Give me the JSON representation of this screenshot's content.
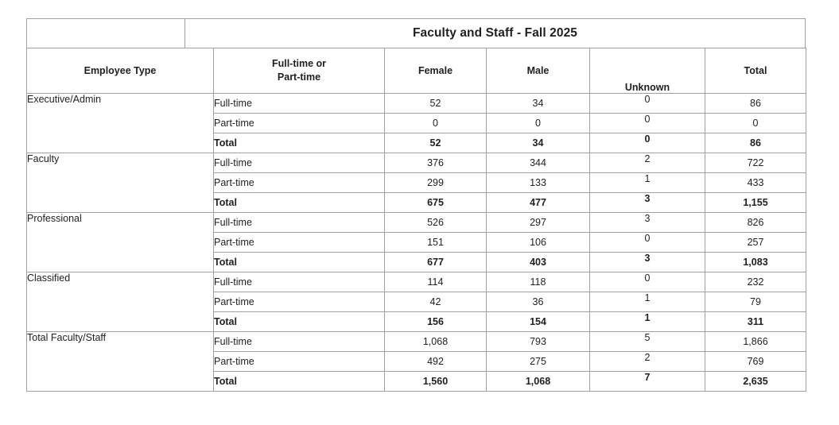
{
  "title": "Faculty and Staff - Fall 2025",
  "columns": {
    "employee_type": "Employee Type",
    "ft_pt": "Full-time or\nPart-time",
    "female": "Female",
    "male": "Male",
    "unknown": "Unknown",
    "total": "Total"
  },
  "groups": [
    {
      "employee_type": "Executive/Admin",
      "rows": [
        {
          "label": "Full-time",
          "female": "52",
          "male": "34",
          "unknown": "0",
          "total": "86",
          "bold": false
        },
        {
          "label": "Part-time",
          "female": "0",
          "male": "0",
          "unknown": "0",
          "total": "0",
          "bold": false
        },
        {
          "label": "Total",
          "female": "52",
          "male": "34",
          "unknown": "0",
          "total": "86",
          "bold": true
        }
      ]
    },
    {
      "employee_type": "Faculty",
      "rows": [
        {
          "label": "Full-time",
          "female": "376",
          "male": "344",
          "unknown": "2",
          "total": "722",
          "bold": false
        },
        {
          "label": "Part-time",
          "female": "299",
          "male": "133",
          "unknown": "1",
          "total": "433",
          "bold": false
        },
        {
          "label": "Total",
          "female": "675",
          "male": "477",
          "unknown": "3",
          "total": "1,155",
          "bold": true
        }
      ]
    },
    {
      "employee_type": "Professional",
      "rows": [
        {
          "label": "Full-time",
          "female": "526",
          "male": "297",
          "unknown": "3",
          "total": "826",
          "bold": false
        },
        {
          "label": "Part-time",
          "female": "151",
          "male": "106",
          "unknown": "0",
          "total": "257",
          "bold": false
        },
        {
          "label": "Total",
          "female": "677",
          "male": "403",
          "unknown": "3",
          "total": "1,083",
          "bold": true
        }
      ]
    },
    {
      "employee_type": "Classified",
      "rows": [
        {
          "label": "Full-time",
          "female": "114",
          "male": "118",
          "unknown": "0",
          "total": "232",
          "bold": false
        },
        {
          "label": "Part-time",
          "female": "42",
          "male": "36",
          "unknown": "1",
          "total": "79",
          "bold": false
        },
        {
          "label": "Total",
          "female": "156",
          "male": "154",
          "unknown": "1",
          "total": "311",
          "bold": true
        }
      ]
    },
    {
      "employee_type": "Total Faculty/Staff",
      "rows": [
        {
          "label": "Full-time",
          "female": "1,068",
          "male": "793",
          "unknown": "5",
          "total": "1,866",
          "bold": false
        },
        {
          "label": "Part-time",
          "female": "492",
          "male": "275",
          "unknown": "2",
          "total": "769",
          "bold": false
        },
        {
          "label": "Total",
          "female": "1,560",
          "male": "1,068",
          "unknown": "7",
          "total": "2,635",
          "bold": true
        }
      ]
    }
  ],
  "style": {
    "border_color": "#a0a0a0",
    "text_color": "#1f1f1f",
    "background": "#ffffff"
  }
}
